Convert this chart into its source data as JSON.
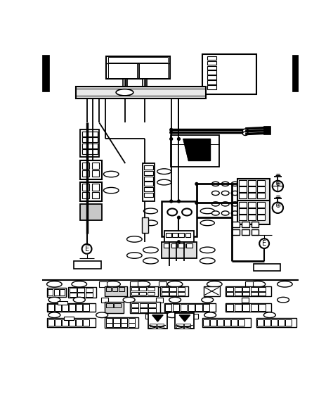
{
  "bg_color": "#ffffff",
  "fig_width": 4.74,
  "fig_height": 5.87,
  "dpi": 100
}
